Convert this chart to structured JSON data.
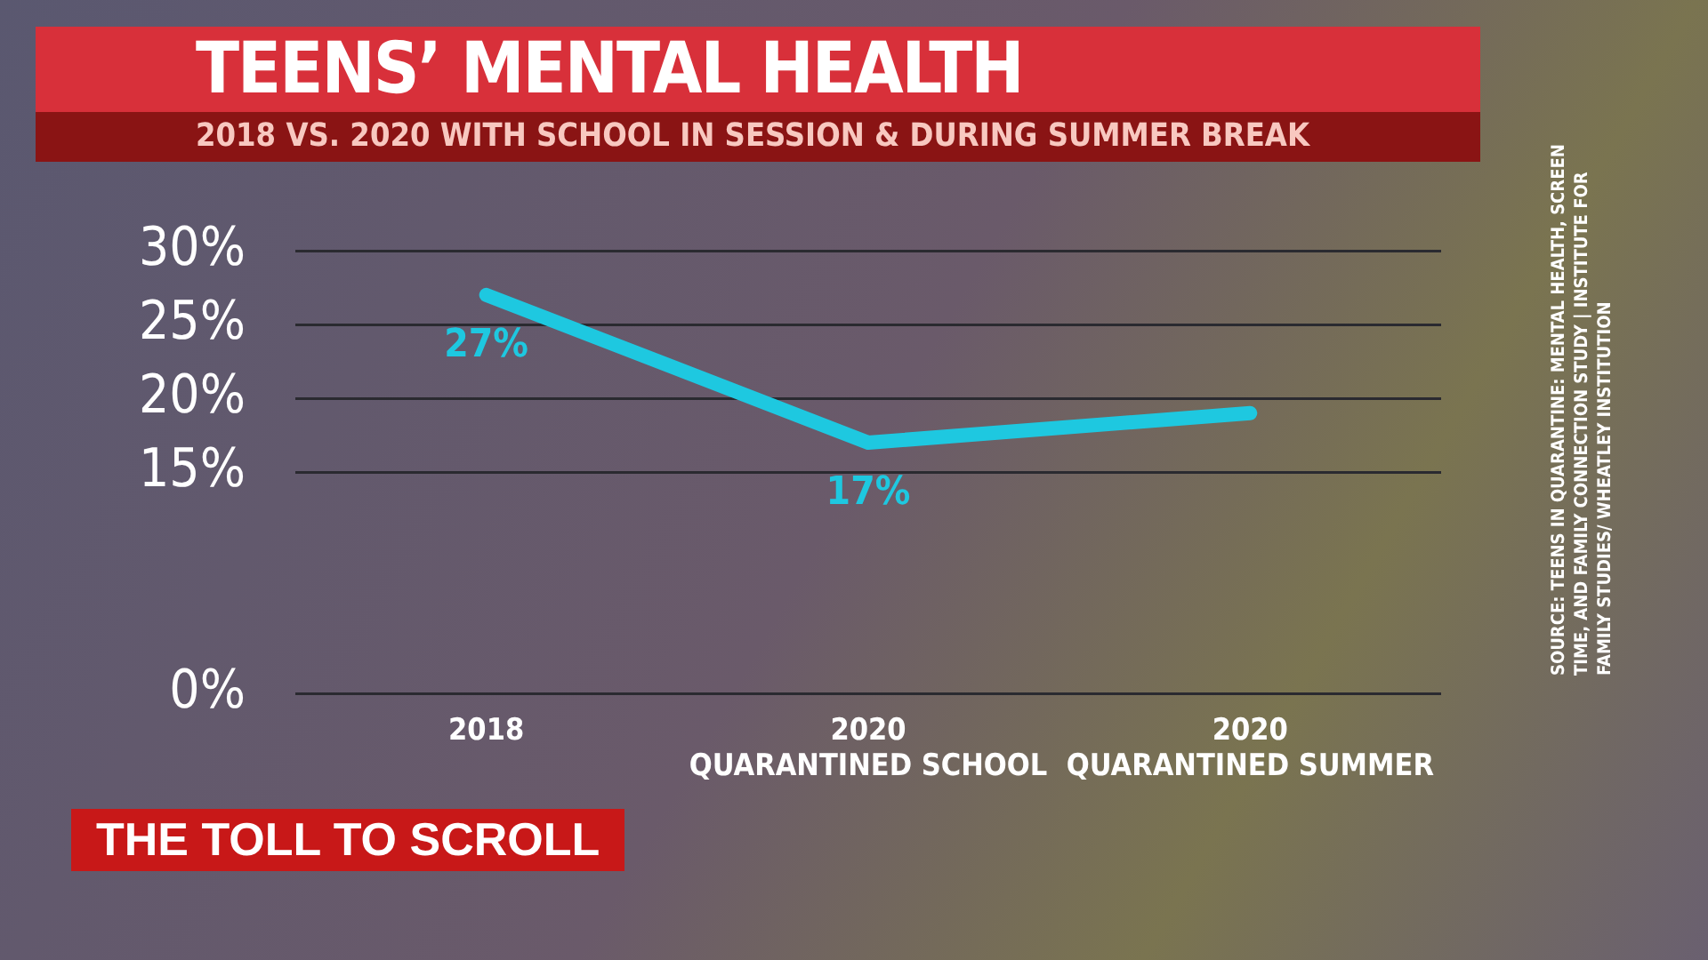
{
  "chart_data": {
    "type": "line",
    "title": "TEENS’ MENTAL HEALTH",
    "subtitle": "2018 VS. 2020 WITH SCHOOL IN SESSION & DURING SUMMER BREAK",
    "categories": [
      "2018",
      "2020 QUARANTINED SCHOOL",
      "2020 QUARANTINED SUMMER"
    ],
    "series": [
      {
        "color": "#1ec8e0",
        "values": [
          27,
          17,
          19
        ],
        "value_labels": [
          "27%",
          "17%",
          null
        ]
      }
    ],
    "ylim": [
      0,
      30
    ],
    "yticks": [
      {
        "value": 0,
        "label": "0%"
      },
      {
        "value": 15,
        "label": "15%"
      },
      {
        "value": 20,
        "label": "20%"
      },
      {
        "value": 25,
        "label": "25%"
      },
      {
        "value": 30,
        "label": "30%"
      }
    ],
    "grid": "y",
    "legend": false,
    "marker": "none",
    "line_style": "solid",
    "annotations": [
      "THE TOLL TO SCROLL",
      "SOURCE: TEENS IN QUARANTINE: MENTAL HEALTH, SCREEN TIME, AND FAMILY CONNECTION STUDY | INSTITUTE FOR FAMILY STUDIES/ WHEATLEY INSTITUTION"
    ]
  }
}
